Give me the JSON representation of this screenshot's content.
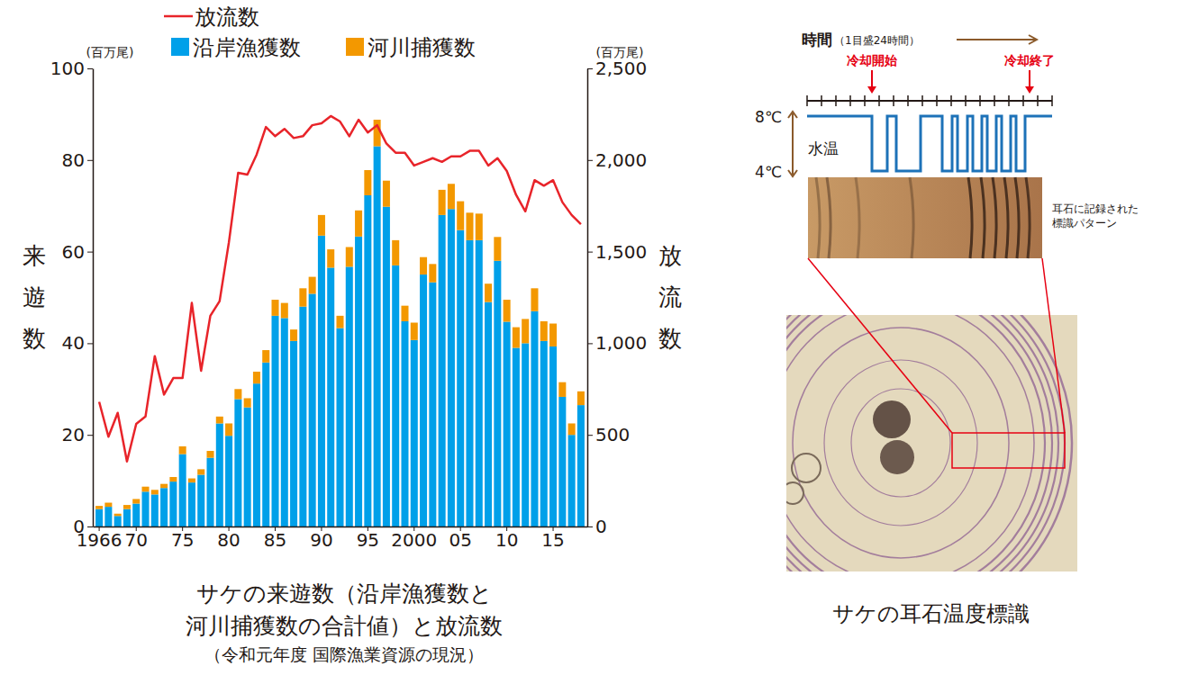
{
  "chart_data": {
    "type": "bar",
    "stacked": true,
    "title": [
      "サケの来遊数（沿岸漁獲数と",
      "河川捕獲数の合計値）と放流数"
    ],
    "subtitle": "（令和元年度 国際漁業資源の現況）",
    "ylabel": "来遊数",
    "yunit": "(百万尾)",
    "y2label": "放流数",
    "y2unit": "(百万尾)",
    "categories": [
      "1966",
      null,
      null,
      null,
      "70",
      null,
      null,
      null,
      null,
      "75",
      null,
      null,
      null,
      null,
      "80",
      null,
      null,
      null,
      null,
      "85",
      null,
      null,
      null,
      null,
      "90",
      null,
      null,
      null,
      null,
      "95",
      null,
      null,
      null,
      null,
      "2000",
      null,
      null,
      null,
      null,
      "05",
      null,
      null,
      null,
      null,
      "10",
      null,
      null,
      null,
      null,
      "15",
      null,
      null,
      null
    ],
    "series": [
      {
        "name": "沿岸漁獲数",
        "type": "bar",
        "color": "#00a0e9",
        "values": [
          3.8,
          4.3,
          2.3,
          3.8,
          5.0,
          7.6,
          7.0,
          8.4,
          9.8,
          15.8,
          9.6,
          11.3,
          15.0,
          22.5,
          19.8,
          27.8,
          26.0,
          31.2,
          35.8,
          46.0,
          45.5,
          40.5,
          48.0,
          50.8,
          63.5,
          56.5,
          43.3,
          56.7,
          63.3,
          72.3,
          83.0,
          69.8,
          57.0,
          44.8,
          40.7,
          55.0,
          53.3,
          68.0,
          69.3,
          64.7,
          62.5,
          62.5,
          49.0,
          58.0,
          44.7,
          39.0,
          40.0,
          47.0,
          40.5,
          39.3,
          28.3,
          20.0,
          26.5
        ]
      },
      {
        "name": "河川捕獲数",
        "type": "bar",
        "color": "#f39800",
        "values": [
          0.7,
          0.9,
          0.5,
          0.9,
          1.0,
          1.1,
          1.0,
          0.9,
          1.0,
          1.7,
          0.9,
          1.2,
          1.5,
          1.5,
          2.7,
          2.2,
          2.0,
          2.6,
          2.7,
          3.5,
          3.3,
          2.5,
          4.0,
          3.7,
          4.5,
          4.0,
          2.7,
          4.3,
          5.7,
          5.5,
          5.8,
          5.7,
          5.5,
          3.4,
          3.8,
          3.8,
          4.0,
          5.5,
          5.5,
          6.3,
          6.0,
          5.8,
          4.0,
          5.2,
          4.8,
          4.5,
          5.3,
          5.0,
          4.3,
          5.0,
          3.2,
          2.5,
          3.0
        ]
      },
      {
        "name": "放流数",
        "type": "line",
        "axis": "y2",
        "color": "#e8242a",
        "values": [
          680,
          490,
          620,
          355,
          560,
          600,
          930,
          720,
          810,
          810,
          1220,
          850,
          1150,
          1230,
          1550,
          1930,
          1920,
          2030,
          2180,
          2130,
          2170,
          2120,
          2130,
          2190,
          2200,
          2240,
          2210,
          2130,
          2220,
          2150,
          2190,
          2090,
          2040,
          2040,
          1970,
          1990,
          2010,
          1990,
          2020,
          2020,
          2050,
          2050,
          1970,
          2010,
          1940,
          1810,
          1720,
          1890,
          1860,
          1890,
          1770,
          1700,
          1650
        ]
      }
    ],
    "ylim": [
      0,
      100
    ],
    "yticks": [
      0,
      20,
      40,
      60,
      80,
      100
    ],
    "y2lim": [
      0,
      2500
    ],
    "y2ticks": [
      0,
      500,
      {
        "value": 1000,
        "label": "1,000"
      },
      {
        "value": 1500,
        "label": "1,500"
      },
      {
        "value": 2000,
        "label": "2,000"
      },
      {
        "value": 2500,
        "label": "2,500"
      }
    ],
    "grid": false,
    "legend": "top"
  },
  "diagram": {
    "time_label": "時間",
    "time_unit": "（1目盛24時間）",
    "cooling_start": "冷却開始",
    "cooling_end": "冷却終了",
    "temp_high": "8℃",
    "temp_low": "4℃",
    "temp_label": "水温",
    "pattern_note": [
      "耳石に記録された",
      "標識パターン"
    ],
    "caption": "サケの耳石温度標識"
  }
}
